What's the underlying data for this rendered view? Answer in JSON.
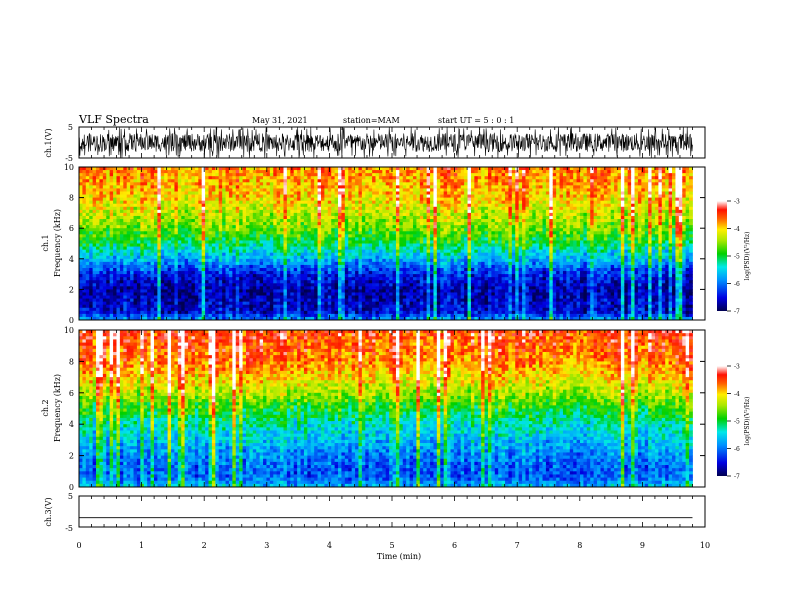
{
  "header": {
    "title": "VLF Spectra",
    "date": "May 31, 2021",
    "station": "station=MAM",
    "start": "start  UT =   5 : 0  : 1"
  },
  "chart_data": [
    {
      "type": "line",
      "panel": "ch1-waveform",
      "ylabel": "ch.1(V)",
      "ylim": [
        -5,
        5
      ],
      "yticks": [
        "5",
        "-5"
      ],
      "xlim": [
        0,
        10
      ],
      "description_values": {
        "amplitude_range_V": [
          -3,
          3
        ]
      }
    },
    {
      "type": "heatmap",
      "panel": "ch1-spectrogram",
      "ylabel": "ch.1\nFrequency (kHz)",
      "ylim": [
        0,
        10
      ],
      "yticks": [
        "0",
        "2",
        "4",
        "6",
        "8",
        "10"
      ],
      "xlim": [
        0,
        10
      ],
      "colorbar": {
        "label": "log(PSD)(V²/Hz)",
        "range": [
          -7,
          -3
        ],
        "ticks": [
          "-3",
          "-4",
          "-5",
          "-6",
          "-7"
        ]
      },
      "profile_khz": [
        0,
        0.5,
        1,
        2,
        3,
        4,
        5,
        6,
        7,
        8,
        10
      ],
      "profile_logpsd": [
        -5.8,
        -6.5,
        -6.6,
        -6.7,
        -6.4,
        -5.7,
        -5.1,
        -4.6,
        -4.3,
        -4.0,
        -3.7
      ]
    },
    {
      "type": "heatmap",
      "panel": "ch2-spectrogram",
      "ylabel": "ch.2\nFrequency (kHz)",
      "ylim": [
        0,
        10
      ],
      "yticks": [
        "0",
        "2",
        "4",
        "6",
        "8",
        "10"
      ],
      "xlim": [
        0,
        10
      ],
      "colorbar": {
        "label": "log(PSD)(V²/Hz)",
        "range": [
          -7,
          -3
        ],
        "ticks": [
          "-3",
          "-4",
          "-5",
          "-6",
          "-7"
        ]
      },
      "profile_khz": [
        0,
        0.5,
        1,
        2,
        3,
        4,
        5,
        6,
        7,
        8,
        10
      ],
      "profile_logpsd": [
        -5.6,
        -6.0,
        -6.1,
        -5.9,
        -5.6,
        -5.3,
        -4.9,
        -4.4,
        -4.0,
        -3.7,
        -3.4
      ]
    },
    {
      "type": "line",
      "panel": "ch3-waveform",
      "ylabel": "ch.3(V)",
      "ylim": [
        -5,
        5
      ],
      "yticks": [
        "5",
        "-5"
      ],
      "xlim": [
        0,
        10
      ],
      "x": [
        0,
        9.8
      ],
      "y": [
        -2,
        -2
      ]
    }
  ],
  "xaxis": {
    "label": "Time (min)",
    "ticks": [
      "0",
      "1",
      "2",
      "3",
      "4",
      "5",
      "6",
      "7",
      "8",
      "9",
      "10"
    ],
    "data_end_min": 9.8
  },
  "colors": {
    "axis": "#000000",
    "background": "#ffffff"
  }
}
